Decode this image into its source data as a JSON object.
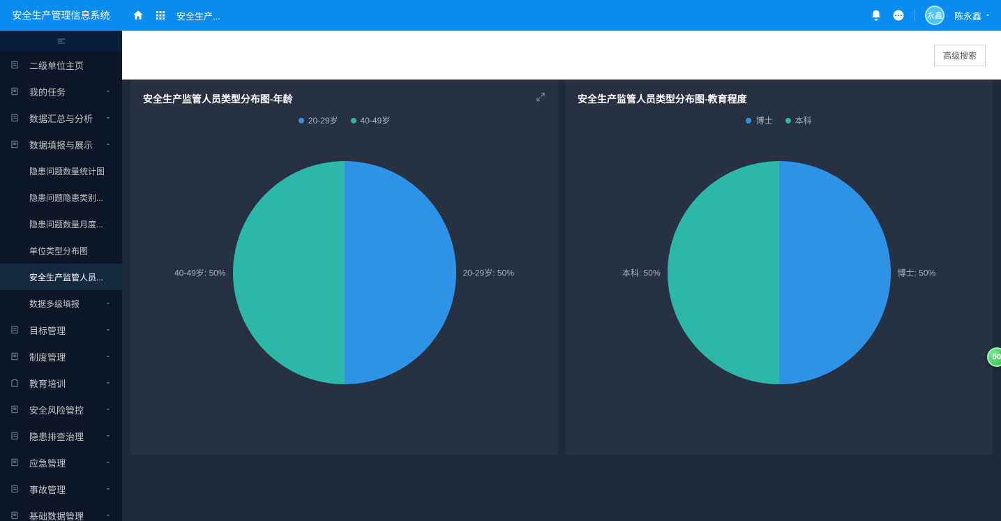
{
  "brand": "安全生产管理信息系统",
  "topbar": {
    "title": "安全生产...",
    "avatar_text": "永鑫",
    "username": "陈永鑫"
  },
  "toolbar": {
    "advanced_search": "高级搜索"
  },
  "sidebar": {
    "items": [
      {
        "label": "二级单位主页",
        "icon": "doc",
        "expandable": false
      },
      {
        "label": "我的任务",
        "icon": "doc",
        "expandable": true,
        "open": false
      },
      {
        "label": "数据汇总与分析",
        "icon": "doc",
        "expandable": true,
        "open": false
      },
      {
        "label": "数据填报与展示",
        "icon": "doc",
        "expandable": true,
        "open": true,
        "children": [
          {
            "label": "隐患问题数量统计图"
          },
          {
            "label": "隐患问题隐患类别..."
          },
          {
            "label": "隐患问题数量月度..."
          },
          {
            "label": "单位类型分布图"
          },
          {
            "label": "安全生产监管人员...",
            "active": true
          },
          {
            "label": "数据多级填报",
            "expandable": true
          }
        ]
      },
      {
        "label": "目标管理",
        "icon": "doc",
        "expandable": true
      },
      {
        "label": "制度管理",
        "icon": "doc",
        "expandable": true
      },
      {
        "label": "教育培训",
        "icon": "clip",
        "expandable": true
      },
      {
        "label": "安全风险管控",
        "icon": "doc",
        "expandable": true
      },
      {
        "label": "隐患排查治理",
        "icon": "doc",
        "expandable": true
      },
      {
        "label": "应急管理",
        "icon": "doc",
        "expandable": true
      },
      {
        "label": "事故管理",
        "icon": "doc",
        "expandable": true
      },
      {
        "label": "基础数据管理",
        "icon": "doc",
        "expandable": true
      }
    ]
  },
  "charts": {
    "age": {
      "type": "pie",
      "title": "安全生产监管人员类型分布图-年龄",
      "background_color": "#273142",
      "radius": 160,
      "slices": [
        {
          "name": "20-29岁",
          "value": 50,
          "color": "#2e93e6",
          "label": "20-29岁: 50%"
        },
        {
          "name": "40-49岁",
          "value": 50,
          "color": "#2cb8a8",
          "label": "40-49岁: 50%"
        }
      ],
      "legend_fontsize": 12,
      "label_color": "#aab2c5"
    },
    "edu": {
      "type": "pie",
      "title": "安全生产监管人员类型分布图-教育程度",
      "background_color": "#273142",
      "radius": 160,
      "slices": [
        {
          "name": "博士",
          "value": 50,
          "color": "#2e93e6",
          "label": "博士: 50%"
        },
        {
          "name": "本科",
          "value": 50,
          "color": "#2cb8a8",
          "label": "本科: 50%"
        }
      ],
      "legend_fontsize": 12,
      "label_color": "#aab2c5"
    }
  },
  "float_badge": "50"
}
